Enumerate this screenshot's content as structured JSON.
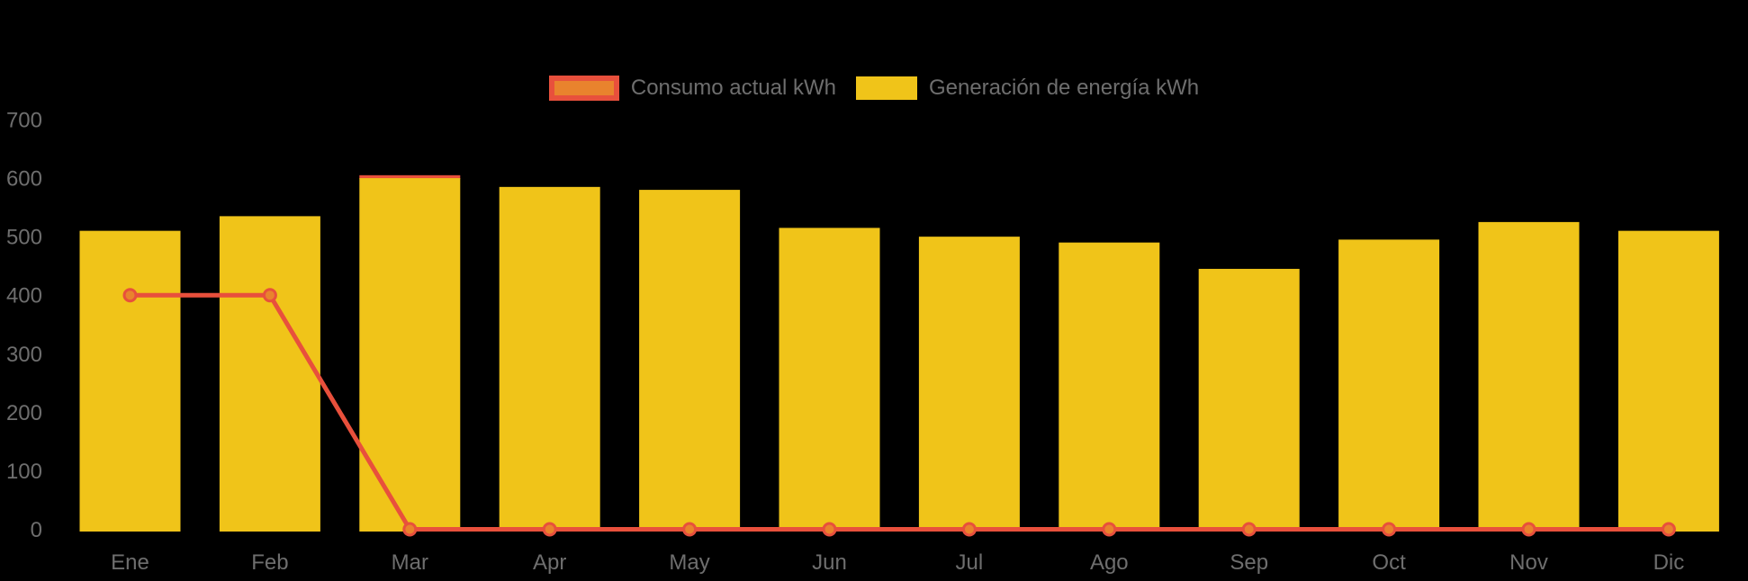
{
  "chart_data": {
    "type": "combo",
    "title": "",
    "categories": [
      "Ene",
      "Feb",
      "Mar",
      "Apr",
      "May",
      "Jun",
      "Jul",
      "Ago",
      "Sep",
      "Oct",
      "Nov",
      "Dic"
    ],
    "series": [
      {
        "name": "Consumo actual kWh",
        "type": "line",
        "values": [
          400,
          400,
          0,
          0,
          0,
          0,
          0,
          0,
          0,
          0,
          0,
          0
        ],
        "line_color": "#e8503c",
        "marker_fill": "#e9832d",
        "marker_stroke": "#e8503c"
      },
      {
        "name": "Generación de energía kWh",
        "type": "bar",
        "values": [
          510,
          535,
          600,
          585,
          580,
          515,
          500,
          490,
          445,
          495,
          525,
          510
        ],
        "bar_color": "#f0c419"
      }
    ],
    "bar_top_accent": {
      "category": "Mar",
      "value": 605,
      "color": "#e8503c"
    },
    "yticks": [
      0,
      100,
      200,
      300,
      400,
      500,
      600,
      700
    ],
    "ylim": [
      0,
      700
    ],
    "grid": false,
    "legend_position": "top-center",
    "background_color": "#000000",
    "axis_text_color": "#6e6e6e"
  }
}
